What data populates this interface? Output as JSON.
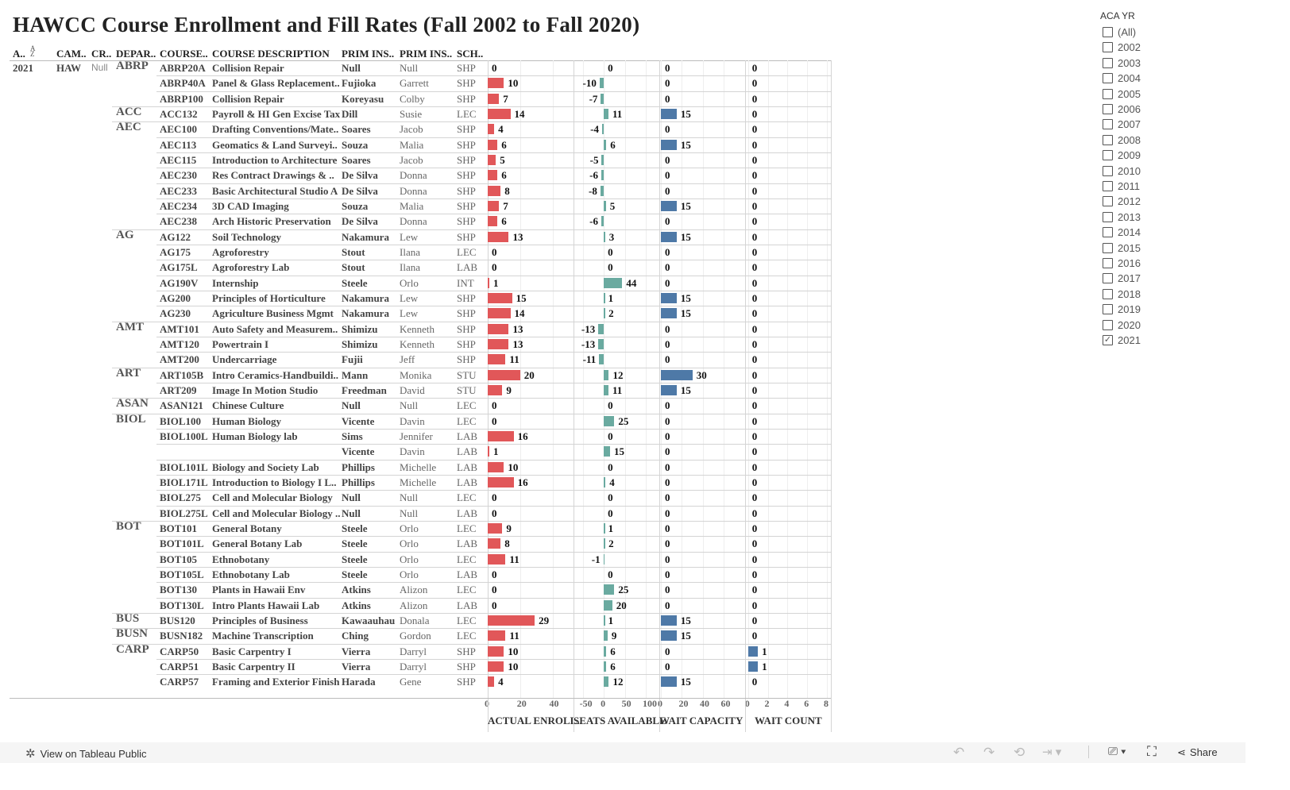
{
  "title": "HAWCC Course Enrollment and Fill Rates (Fall 2002 to Fall 2020)",
  "headers": [
    "A..",
    "CAM..",
    "CR..",
    "DEPAR..",
    "COURSE..",
    "COURSE DESCRIPTION",
    "PRIM INS..",
    "PRIM INS..",
    "SCH.."
  ],
  "sort_icon": "sort-az-icon",
  "fixed": {
    "aca_yr": "2021",
    "campus": "HAW",
    "cr": "Null"
  },
  "colors": {
    "enroll": "#e15759",
    "seats": "#6aaaa0",
    "wait_cap": "#4e79a7",
    "wait_count": "#4e79a7"
  },
  "axes": [
    {
      "title": "ACTUAL ENROLL..",
      "ticks": [
        "0",
        "20",
        "40"
      ],
      "range": [
        0,
        53
      ]
    },
    {
      "title": "SEATS AVAILABLE",
      "ticks": [
        "-50",
        "0",
        "50",
        "100"
      ],
      "range": [
        -72,
        132
      ]
    },
    {
      "title": "WAIT CAPACITY",
      "ticks": [
        "0",
        "20",
        "40",
        "60"
      ],
      "range": [
        -1.5,
        80
      ]
    },
    {
      "title": "WAIT COUNT",
      "ticks": [
        "0",
        "2",
        "4",
        "6",
        "8"
      ],
      "range": [
        -0.3,
        8.4
      ]
    }
  ],
  "rows": [
    {
      "dept": "ABRP",
      "course": "ABRP20A",
      "desc": "Collision Repair",
      "inst_last": "Null",
      "inst_first": "Null",
      "sch": "SHP",
      "v": [
        0,
        0,
        0,
        0
      ]
    },
    {
      "dept": "",
      "course": "ABRP40A",
      "desc": "Panel & Glass Replacement..",
      "inst_last": "Fujioka",
      "inst_first": "Garrett",
      "sch": "SHP",
      "v": [
        10,
        -10,
        0,
        0
      ]
    },
    {
      "dept": "",
      "course": "ABRP100",
      "desc": "Collision Repair",
      "inst_last": "Koreyasu",
      "inst_first": "Colby",
      "sch": "SHP",
      "v": [
        7,
        -7,
        0,
        0
      ]
    },
    {
      "dept": "ACC",
      "course": "ACC132",
      "desc": "Payroll & HI Gen Excise Tax",
      "inst_last": "Dill",
      "inst_first": "Susie",
      "sch": "LEC",
      "v": [
        14,
        11,
        15,
        0
      ]
    },
    {
      "dept": "AEC",
      "course": "AEC100",
      "desc": "Drafting Conventions/Mate..",
      "inst_last": "Soares",
      "inst_first": "Jacob",
      "sch": "SHP",
      "v": [
        4,
        -4,
        0,
        0
      ]
    },
    {
      "dept": "",
      "course": "AEC113",
      "desc": "Geomatics & Land Surveyi..",
      "inst_last": "Souza",
      "inst_first": "Malia",
      "sch": "SHP",
      "v": [
        6,
        6,
        15,
        0
      ]
    },
    {
      "dept": "",
      "course": "AEC115",
      "desc": "Introduction to Architecture",
      "inst_last": "Soares",
      "inst_first": "Jacob",
      "sch": "SHP",
      "v": [
        5,
        -5,
        0,
        0
      ]
    },
    {
      "dept": "",
      "course": "AEC230",
      "desc": "Res Contract Drawings & ..",
      "inst_last": "De Silva",
      "inst_first": "Donna",
      "sch": "SHP",
      "v": [
        6,
        -6,
        0,
        0
      ]
    },
    {
      "dept": "",
      "course": "AEC233",
      "desc": "Basic Architectural Studio A",
      "inst_last": "De Silva",
      "inst_first": "Donna",
      "sch": "SHP",
      "v": [
        8,
        -8,
        0,
        0
      ]
    },
    {
      "dept": "",
      "course": "AEC234",
      "desc": "3D CAD Imaging",
      "inst_last": "Souza",
      "inst_first": "Malia",
      "sch": "SHP",
      "v": [
        7,
        5,
        15,
        0
      ]
    },
    {
      "dept": "",
      "course": "AEC238",
      "desc": "Arch Historic Preservation",
      "inst_last": "De Silva",
      "inst_first": "Donna",
      "sch": "SHP",
      "v": [
        6,
        -6,
        0,
        0
      ]
    },
    {
      "dept": "AG",
      "course": "AG122",
      "desc": "Soil Technology",
      "inst_last": "Nakamura",
      "inst_first": "Lew",
      "sch": "SHP",
      "v": [
        13,
        3,
        15,
        0
      ]
    },
    {
      "dept": "",
      "course": "AG175",
      "desc": "Agroforestry",
      "inst_last": "Stout",
      "inst_first": "Ilana",
      "sch": "LEC",
      "v": [
        0,
        0,
        0,
        0
      ]
    },
    {
      "dept": "",
      "course": "AG175L",
      "desc": "Agroforestry Lab",
      "inst_last": "Stout",
      "inst_first": "Ilana",
      "sch": "LAB",
      "v": [
        0,
        0,
        0,
        0
      ]
    },
    {
      "dept": "",
      "course": "AG190V",
      "desc": "Internship",
      "inst_last": "Steele",
      "inst_first": "Orlo",
      "sch": "INT",
      "v": [
        1,
        44,
        0,
        0
      ]
    },
    {
      "dept": "",
      "course": "AG200",
      "desc": "Principles of Horticulture",
      "inst_last": "Nakamura",
      "inst_first": "Lew",
      "sch": "SHP",
      "v": [
        15,
        1,
        15,
        0
      ]
    },
    {
      "dept": "",
      "course": "AG230",
      "desc": "Agriculture Business Mgmt",
      "inst_last": "Nakamura",
      "inst_first": "Lew",
      "sch": "SHP",
      "v": [
        14,
        2,
        15,
        0
      ]
    },
    {
      "dept": "AMT",
      "course": "AMT101",
      "desc": "Auto Safety and Measurem..",
      "inst_last": "Shimizu",
      "inst_first": "Kenneth",
      "sch": "SHP",
      "v": [
        13,
        -13,
        0,
        0
      ]
    },
    {
      "dept": "",
      "course": "AMT120",
      "desc": "Powertrain I",
      "inst_last": "Shimizu",
      "inst_first": "Kenneth",
      "sch": "SHP",
      "v": [
        13,
        -13,
        0,
        0
      ]
    },
    {
      "dept": "",
      "course": "AMT200",
      "desc": "Undercarriage",
      "inst_last": "Fujii",
      "inst_first": "Jeff",
      "sch": "SHP",
      "v": [
        11,
        -11,
        0,
        0
      ]
    },
    {
      "dept": "ART",
      "course": "ART105B",
      "desc": "Intro Ceramics-Handbuildi..",
      "inst_last": "Mann",
      "inst_first": "Monika",
      "sch": "STU",
      "v": [
        20,
        12,
        30,
        0
      ]
    },
    {
      "dept": "",
      "course": "ART209",
      "desc": "Image In Motion Studio",
      "inst_last": "Freedman",
      "inst_first": "David",
      "sch": "STU",
      "v": [
        9,
        11,
        15,
        0
      ]
    },
    {
      "dept": "ASAN",
      "course": "ASAN121",
      "desc": "Chinese Culture",
      "inst_last": "Null",
      "inst_first": "Null",
      "sch": "LEC",
      "v": [
        0,
        0,
        0,
        0
      ]
    },
    {
      "dept": "BIOL",
      "course": "BIOL100",
      "desc": "Human Biology",
      "inst_last": "Vicente",
      "inst_first": "Davin",
      "sch": "LEC",
      "v": [
        0,
        25,
        0,
        0
      ]
    },
    {
      "dept": "",
      "course": "BIOL100L",
      "desc": "Human Biology lab",
      "inst_last": "Sims",
      "inst_first": "Jennifer",
      "sch": "LAB",
      "v": [
        16,
        0,
        0,
        0
      ]
    },
    {
      "dept": "",
      "course": "",
      "desc": "",
      "inst_last": "Vicente",
      "inst_first": "Davin",
      "sch": "LAB",
      "v": [
        1,
        15,
        0,
        0
      ]
    },
    {
      "dept": "",
      "course": "BIOL101L",
      "desc": "Biology and Society Lab",
      "inst_last": "Phillips",
      "inst_first": "Michelle",
      "sch": "LAB",
      "v": [
        10,
        0,
        0,
        0
      ]
    },
    {
      "dept": "",
      "course": "BIOL171L",
      "desc": "Introduction to Biology I L..",
      "inst_last": "Phillips",
      "inst_first": "Michelle",
      "sch": "LAB",
      "v": [
        16,
        4,
        0,
        0
      ]
    },
    {
      "dept": "",
      "course": "BIOL275",
      "desc": "Cell and Molecular Biology",
      "inst_last": "Null",
      "inst_first": "Null",
      "sch": "LEC",
      "v": [
        0,
        0,
        0,
        0
      ]
    },
    {
      "dept": "",
      "course": "BIOL275L",
      "desc": "Cell and Molecular Biology ..",
      "inst_last": "Null",
      "inst_first": "Null",
      "sch": "LAB",
      "v": [
        0,
        0,
        0,
        0
      ]
    },
    {
      "dept": "BOT",
      "course": "BOT101",
      "desc": "General Botany",
      "inst_last": "Steele",
      "inst_first": "Orlo",
      "sch": "LEC",
      "v": [
        9,
        1,
        0,
        0
      ]
    },
    {
      "dept": "",
      "course": "BOT101L",
      "desc": "General Botany Lab",
      "inst_last": "Steele",
      "inst_first": "Orlo",
      "sch": "LAB",
      "v": [
        8,
        2,
        0,
        0
      ]
    },
    {
      "dept": "",
      "course": "BOT105",
      "desc": "Ethnobotany",
      "inst_last": "Steele",
      "inst_first": "Orlo",
      "sch": "LEC",
      "v": [
        11,
        -1,
        0,
        0
      ]
    },
    {
      "dept": "",
      "course": "BOT105L",
      "desc": "Ethnobotany Lab",
      "inst_last": "Steele",
      "inst_first": "Orlo",
      "sch": "LAB",
      "v": [
        0,
        0,
        0,
        0
      ]
    },
    {
      "dept": "",
      "course": "BOT130",
      "desc": "Plants in Hawaii Env",
      "inst_last": "Atkins",
      "inst_first": "Alizon",
      "sch": "LEC",
      "v": [
        0,
        25,
        0,
        0
      ]
    },
    {
      "dept": "",
      "course": "BOT130L",
      "desc": "Intro Plants Hawaii Lab",
      "inst_last": "Atkins",
      "inst_first": "Alizon",
      "sch": "LAB",
      "v": [
        0,
        20,
        0,
        0
      ]
    },
    {
      "dept": "BUS",
      "course": "BUS120",
      "desc": "Principles of Business",
      "inst_last": "Kawaauhau",
      "inst_first": "Donala",
      "sch": "LEC",
      "v": [
        29,
        1,
        15,
        0
      ]
    },
    {
      "dept": "BUSN",
      "course": "BUSN182",
      "desc": "Machine Transcription",
      "inst_last": "Ching",
      "inst_first": "Gordon",
      "sch": "LEC",
      "v": [
        11,
        9,
        15,
        0
      ]
    },
    {
      "dept": "CARP",
      "course": "CARP50",
      "desc": "Basic Carpentry I",
      "inst_last": "Vierra",
      "inst_first": "Darryl",
      "sch": "SHP",
      "v": [
        10,
        6,
        0,
        1
      ]
    },
    {
      "dept": "",
      "course": "CARP51",
      "desc": "Basic Carpentry II",
      "inst_last": "Vierra",
      "inst_first": "Darryl",
      "sch": "SHP",
      "v": [
        10,
        6,
        0,
        1
      ]
    },
    {
      "dept": "",
      "course": "CARP57",
      "desc": "Framing and Exterior Finish",
      "inst_last": "Harada",
      "inst_first": "Gene",
      "sch": "SHP",
      "v": [
        4,
        12,
        15,
        0
      ]
    }
  ],
  "filter": {
    "title": "ACA YR",
    "options": [
      {
        "label": "(All)",
        "checked": false
      },
      {
        "label": "2002",
        "checked": false
      },
      {
        "label": "2003",
        "checked": false
      },
      {
        "label": "2004",
        "checked": false
      },
      {
        "label": "2005",
        "checked": false
      },
      {
        "label": "2006",
        "checked": false
      },
      {
        "label": "2007",
        "checked": false
      },
      {
        "label": "2008",
        "checked": false
      },
      {
        "label": "2009",
        "checked": false
      },
      {
        "label": "2010",
        "checked": false
      },
      {
        "label": "2011",
        "checked": false
      },
      {
        "label": "2012",
        "checked": false
      },
      {
        "label": "2013",
        "checked": false
      },
      {
        "label": "2014",
        "checked": false
      },
      {
        "label": "2015",
        "checked": false
      },
      {
        "label": "2016",
        "checked": false
      },
      {
        "label": "2017",
        "checked": false
      },
      {
        "label": "2018",
        "checked": false
      },
      {
        "label": "2019",
        "checked": false
      },
      {
        "label": "2020",
        "checked": false
      },
      {
        "label": "2021",
        "checked": true
      }
    ]
  },
  "footer": {
    "view_label": "View on Tableau Public",
    "share_label": "Share"
  }
}
